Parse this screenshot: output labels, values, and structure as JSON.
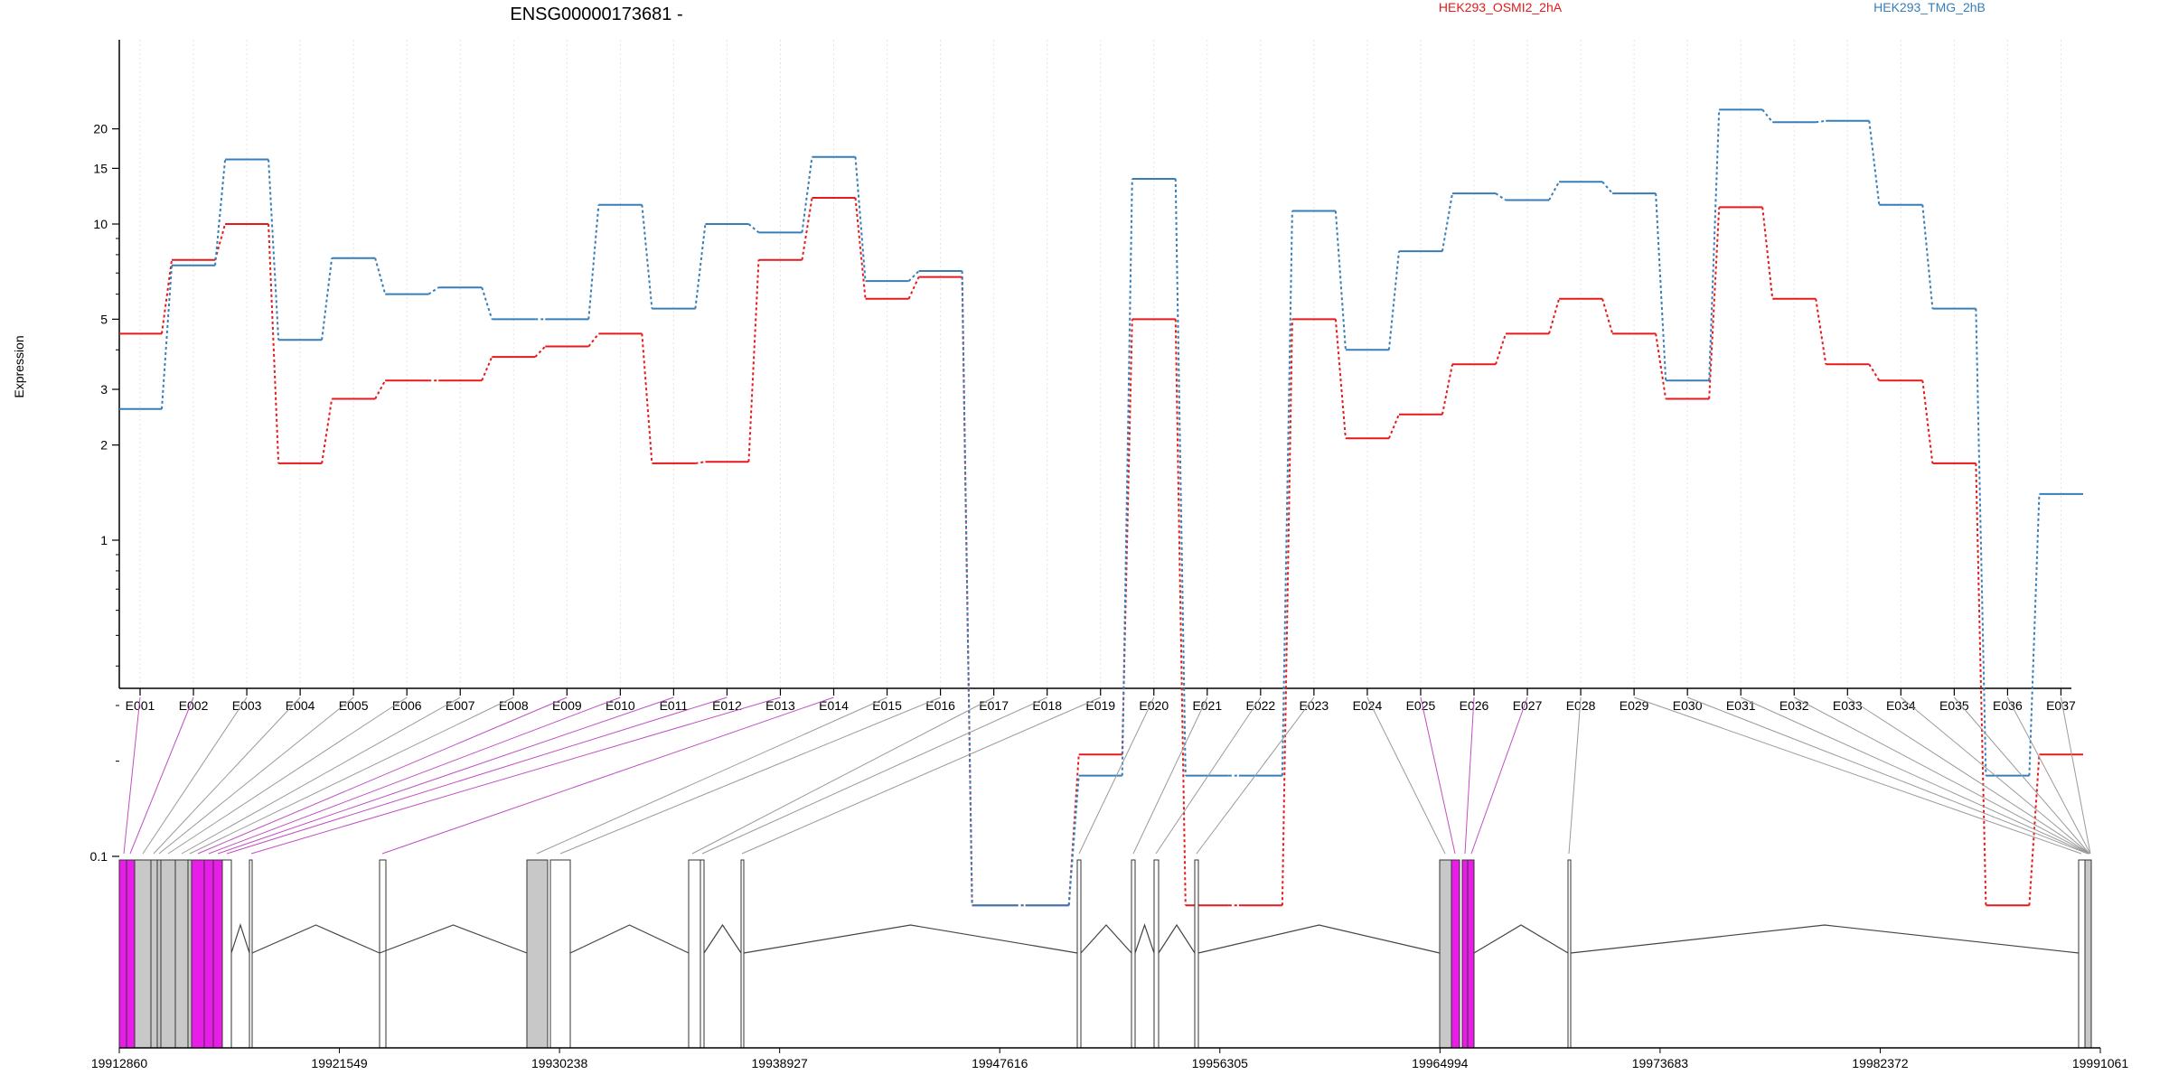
{
  "chart_data": {
    "type": "line",
    "title": "ENSG00000173681 -",
    "ylabel": "Expression",
    "y_scale": "log",
    "y_ticks": [
      0.1,
      1,
      2,
      3,
      5,
      10,
      15,
      20
    ],
    "y_tick_labels": [
      "0.1",
      "1",
      "2",
      "3",
      "5",
      "10",
      "15",
      "20"
    ],
    "categories": [
      "E001",
      "E002",
      "E003",
      "E004",
      "E005",
      "E006",
      "E007",
      "E008",
      "E009",
      "E010",
      "E011",
      "E012",
      "E013",
      "E014",
      "E015",
      "E016",
      "E017",
      "E018",
      "E019",
      "E020",
      "E021",
      "E022",
      "E023",
      "E024",
      "E025",
      "E026",
      "E027",
      "E028",
      "E029",
      "E030",
      "E031",
      "E032",
      "E033",
      "E034",
      "E035",
      "E036",
      "E037"
    ],
    "series": [
      {
        "name": "HEK293_OSMI2_2hA",
        "color": "#e41a1c",
        "values": [
          4.5,
          7.7,
          10.0,
          1.75,
          2.8,
          3.2,
          3.2,
          3.8,
          4.1,
          4.5,
          1.75,
          1.77,
          7.7,
          12.1,
          5.8,
          6.8,
          0.07,
          0.07,
          0.21,
          5.0,
          0.07,
          0.07,
          5.0,
          2.1,
          2.5,
          3.6,
          4.5,
          5.8,
          4.5,
          2.8,
          11.3,
          5.8,
          3.6,
          3.2,
          1.75,
          0.07,
          0.21
        ]
      },
      {
        "name": "HEK293_TMG_2hB",
        "color": "#377eb8",
        "values": [
          2.6,
          7.4,
          16.0,
          4.3,
          7.8,
          6.0,
          6.3,
          5.0,
          5.0,
          11.5,
          5.4,
          10.0,
          9.4,
          16.3,
          6.6,
          7.1,
          0.07,
          0.07,
          0.18,
          13.9,
          0.18,
          0.18,
          11.0,
          4.0,
          8.2,
          12.5,
          11.9,
          13.6,
          12.5,
          3.2,
          23.0,
          21.0,
          21.2,
          11.5,
          5.4,
          0.18,
          1.4
        ]
      }
    ],
    "genomic_axis_labels": [
      "19912860",
      "19921549",
      "19930238",
      "19938927",
      "19947616",
      "19956305",
      "19964994",
      "19973683",
      "19982372",
      "19991061"
    ],
    "genomic_range": [
      19912860,
      19991061
    ],
    "grid": "vertical dotted per exon",
    "legend_placement": "top"
  }
}
